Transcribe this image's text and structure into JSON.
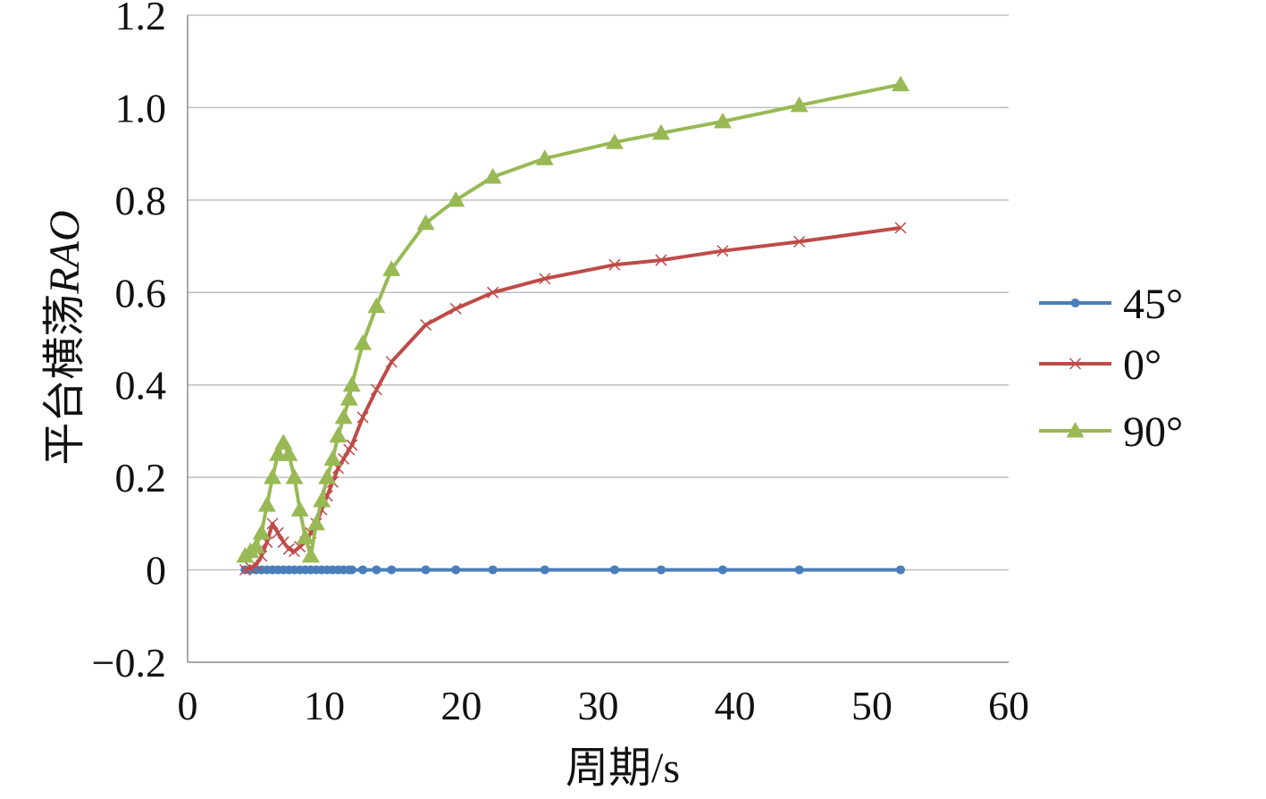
{
  "chart_data": {
    "type": "line",
    "xlabel": "周期/s",
    "ylabel": "平台横荡RAO",
    "ylabel_main": "平台横荡",
    "ylabel_italic": "RAO",
    "xlim": [
      0,
      60
    ],
    "ylim": [
      -0.2,
      1.2
    ],
    "x_ticks": [
      0,
      10,
      20,
      30,
      40,
      50,
      60
    ],
    "x_tick_labels": [
      "0",
      "10",
      "20",
      "30",
      "40",
      "50",
      "60"
    ],
    "y_ticks": [
      -0.2,
      0,
      0.2,
      0.4,
      0.6,
      0.8,
      1.0,
      1.2
    ],
    "y_tick_labels": [
      "−0.2",
      "0",
      "0.2",
      "0.4",
      "0.6",
      "0.8",
      "1.0",
      "1.2"
    ],
    "grid": "horizontal",
    "legend_position": "right",
    "series": [
      {
        "name": "45°",
        "color": "#4a7ebb",
        "marker": "diamond",
        "x": [
          4.2,
          4.6,
          5.0,
          5.4,
          5.8,
          6.2,
          6.6,
          7.0,
          7.4,
          7.8,
          8.2,
          8.6,
          9.0,
          9.4,
          9.8,
          10.2,
          10.6,
          11.0,
          11.4,
          11.8,
          12.0,
          12.8,
          13.8,
          14.9,
          17.4,
          19.6,
          22.3,
          26.1,
          31.2,
          34.6,
          39.1,
          44.7,
          52.1
        ],
        "y": [
          0,
          0,
          0,
          0,
          0,
          0,
          0,
          0,
          0,
          0,
          0,
          0,
          0,
          0,
          0,
          0,
          0,
          0,
          0,
          0,
          0,
          0,
          0,
          0,
          0,
          0,
          0,
          0,
          0,
          0,
          0,
          0,
          0
        ]
      },
      {
        "name": "0°",
        "color": "#be4b48",
        "marker": "x",
        "x": [
          4.2,
          4.6,
          5.0,
          5.4,
          5.8,
          6.2,
          6.6,
          7.0,
          7.4,
          7.8,
          8.2,
          8.6,
          9.0,
          9.4,
          9.8,
          10.2,
          10.6,
          11.0,
          11.4,
          11.8,
          12.0,
          12.8,
          13.8,
          14.9,
          17.4,
          19.6,
          22.3,
          26.1,
          31.2,
          34.6,
          39.1,
          44.7,
          52.1
        ],
        "y": [
          0.0,
          0.005,
          0.01,
          0.03,
          0.06,
          0.1,
          0.08,
          0.06,
          0.045,
          0.04,
          0.05,
          0.06,
          0.08,
          0.1,
          0.13,
          0.16,
          0.19,
          0.22,
          0.24,
          0.26,
          0.27,
          0.33,
          0.39,
          0.45,
          0.53,
          0.565,
          0.6,
          0.63,
          0.66,
          0.67,
          0.69,
          0.71,
          0.74
        ]
      },
      {
        "name": "90°",
        "color": "#98b954",
        "marker": "triangle",
        "x": [
          4.2,
          4.6,
          5.0,
          5.4,
          5.8,
          6.2,
          6.6,
          7.0,
          7.4,
          7.8,
          8.2,
          8.6,
          9.0,
          9.4,
          9.8,
          10.2,
          10.6,
          11.0,
          11.4,
          11.8,
          12.0,
          12.8,
          13.8,
          14.9,
          17.4,
          19.6,
          22.3,
          26.1,
          31.2,
          34.6,
          39.1,
          44.7,
          52.1
        ],
        "y": [
          0.03,
          0.04,
          0.05,
          0.08,
          0.14,
          0.2,
          0.25,
          0.275,
          0.25,
          0.2,
          0.13,
          0.07,
          0.03,
          0.1,
          0.15,
          0.2,
          0.24,
          0.29,
          0.33,
          0.37,
          0.4,
          0.49,
          0.57,
          0.65,
          0.75,
          0.8,
          0.85,
          0.89,
          0.925,
          0.945,
          0.97,
          1.005,
          1.05
        ]
      }
    ]
  }
}
